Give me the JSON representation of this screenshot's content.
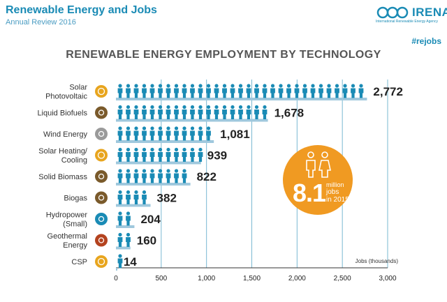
{
  "header": {
    "title": "Renewable Energy and Jobs",
    "subtitle": "Annual Review 2016",
    "logo_text": "IRENA",
    "logo_tagline": "International Renewable Energy Agency",
    "hashtag": "#rejobs"
  },
  "badge": {
    "big": "8.1",
    "line1": "million",
    "line2": "jobs",
    "line3": "in 2015"
  },
  "colors": {
    "people": "#1a8bb5",
    "bar_shadow": "#9fc8dd",
    "badge": "#f09a22",
    "grid": "#7ab8d2"
  },
  "chart_data": {
    "type": "bar",
    "title": "RENEWABLE ENERGY EMPLOYMENT BY TECHNOLOGY",
    "xlabel": "Jobs (thousands)",
    "ylabel": "",
    "xlim": [
      0,
      3000
    ],
    "xticks": [
      0,
      500,
      1000,
      1500,
      2000,
      2500,
      3000
    ],
    "xtick_labels": [
      "0",
      "500",
      "1,000",
      "1,500",
      "2,000",
      "2,500",
      "3,000"
    ],
    "grid": true,
    "categories": [
      {
        "label": "Solar\nPhotovoltaic",
        "value": 2772,
        "value_label": "2,772",
        "icon": "sun-icon",
        "icon_color": "#e8a51e"
      },
      {
        "label": "Liquid Biofuels",
        "value": 1678,
        "value_label": "1,678",
        "icon": "biofuel-drop-icon",
        "icon_color": "#7a5a2b"
      },
      {
        "label": "Wind Energy",
        "value": 1081,
        "value_label": "1,081",
        "icon": "wind-icon",
        "icon_color": "#9a9a9a"
      },
      {
        "label": "Solar Heating/\nCooling",
        "value": 939,
        "value_label": "939",
        "icon": "sun-icon",
        "icon_color": "#e8a51e"
      },
      {
        "label": "Solid Biomass",
        "value": 822,
        "value_label": "822",
        "icon": "leaf-icon",
        "icon_color": "#7a5a2b"
      },
      {
        "label": "Biogas",
        "value": 382,
        "value_label": "382",
        "icon": "biogas-drop-icon",
        "icon_color": "#7a5a2b"
      },
      {
        "label": "Hydropower\n(Small)",
        "value": 204,
        "value_label": "204",
        "icon": "water-drop-icon",
        "icon_color": "#1a8bb5"
      },
      {
        "label": "Geothermal\nEnergy",
        "value": 160,
        "value_label": "160",
        "icon": "volcano-icon",
        "icon_color": "#b4431f"
      },
      {
        "label": "CSP",
        "value": 14,
        "value_label": "14",
        "icon": "sun-icon",
        "icon_color": "#e8a51e"
      }
    ]
  }
}
